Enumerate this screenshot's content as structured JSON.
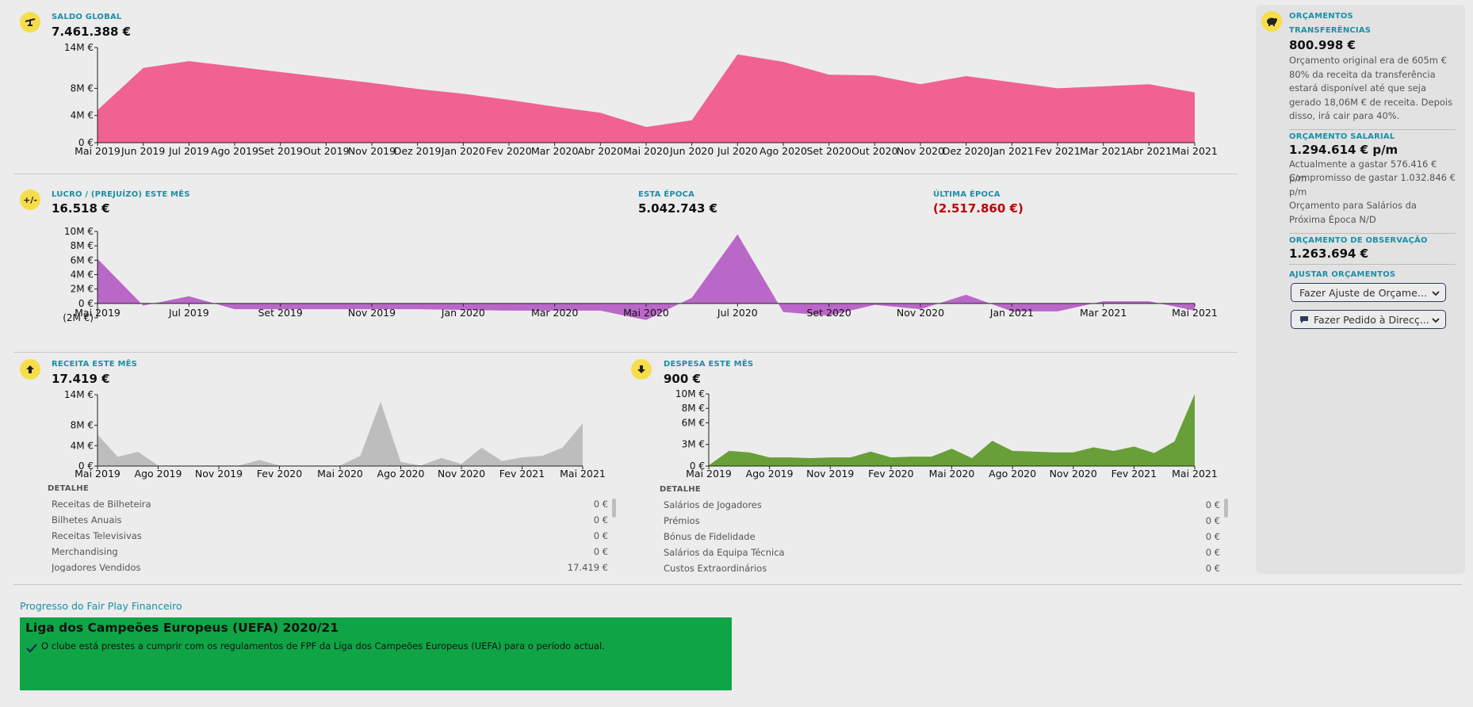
{
  "colors": {
    "accent": "#1c8fa5",
    "balance": "#f06292",
    "profit": "#ba68c8",
    "income": "#bdbdbd",
    "expense": "#689f38",
    "negative": "#c00000",
    "ffp": "#0fa546"
  },
  "balance": {
    "label": "SALDO GLOBAL",
    "value": "7.461.388 €",
    "icon": "scale-icon",
    "chart_data": {
      "type": "area",
      "categories": [
        "Mai 2019",
        "Jun 2019",
        "Jul 2019",
        "Ago 2019",
        "Set 2019",
        "Out 2019",
        "Nov 2019",
        "Dez 2019",
        "Jan 2020",
        "Fev 2020",
        "Mar 2020",
        "Abr 2020",
        "Mai 2020",
        "Jun 2020",
        "Jul 2020",
        "Ago 2020",
        "Set 2020",
        "Out 2020",
        "Nov 2020",
        "Dez 2020",
        "Jan 2021",
        "Fev 2021",
        "Mar 2021",
        "Abr 2021",
        "Mai 2021"
      ],
      "values": [
        4.8,
        11.0,
        12.0,
        11.2,
        10.4,
        9.6,
        8.8,
        7.9,
        7.2,
        6.3,
        5.3,
        4.4,
        2.3,
        3.3,
        13.0,
        11.9,
        10.0,
        9.9,
        8.6,
        9.8,
        8.9,
        8.0,
        8.3,
        8.6,
        7.4
      ],
      "yticks": [
        "0 €",
        "4M €",
        "8M €",
        "14M €"
      ],
      "ytick_values": [
        0,
        4,
        8,
        14
      ],
      "ylim": [
        0,
        14
      ]
    }
  },
  "profit": {
    "label": "LUCRO / (PREJUÍZO) ESTE MÊS",
    "value": "16.518 €",
    "icon": "plus-minus-icon",
    "season_label": "ESTA ÉPOCA",
    "season_value": "5.042.743 €",
    "last_label": "ÚLTIMA ÉPOCA",
    "last_value": "(2.517.860 €)",
    "chart_data": {
      "type": "area",
      "x_labels": [
        "Mai 2019",
        "Jul 2019",
        "Set 2019",
        "Nov 2019",
        "Jan 2020",
        "Mar 2020",
        "Mai 2020",
        "Jul 2020",
        "Set 2020",
        "Nov 2020",
        "Jan 2021",
        "Mar 2021",
        "Mai 2021"
      ],
      "values": [
        6.2,
        -0.3,
        1.0,
        -0.8,
        -0.8,
        -0.8,
        -0.8,
        -0.8,
        -0.9,
        -1.0,
        -1.0,
        -1.0,
        -2.3,
        0.8,
        9.6,
        -1.2,
        -1.7,
        -0.2,
        -0.8,
        1.2,
        -1.1,
        -1.1,
        0.3,
        0.3,
        -1.0
      ],
      "yticks": [
        "10M €",
        "8M €",
        "6M €",
        "4M €",
        "2M €",
        "0 €",
        "(2M €)"
      ],
      "ytick_values": [
        10,
        8,
        6,
        4,
        2,
        0,
        -2
      ],
      "ylim": [
        -2,
        10
      ]
    }
  },
  "income": {
    "label": "RECEITA ESTE MÊS",
    "value": "17.419 €",
    "icon": "arrow-up-icon",
    "chart_data": {
      "type": "area",
      "x_labels": [
        "Mai 2019",
        "Ago 2019",
        "Nov 2019",
        "Fev 2020",
        "Mai 2020",
        "Ago 2020",
        "Nov 2020",
        "Fev 2021",
        "Mai 2021"
      ],
      "values": [
        6.2,
        1.8,
        2.8,
        0.1,
        0.1,
        0.1,
        0.1,
        0.1,
        1.2,
        0.1,
        0.1,
        0.1,
        0.1,
        2.0,
        12.6,
        0.8,
        0.1,
        1.6,
        0.4,
        3.6,
        1.0,
        1.7,
        2.0,
        3.6,
        8.4
      ],
      "yticks": [
        "0 €",
        "4M €",
        "8M €",
        "14M €"
      ],
      "ytick_values": [
        0,
        4,
        8,
        14
      ],
      "ylim": [
        0,
        14
      ]
    },
    "detail_label": "DETALHE",
    "details": [
      {
        "name": "Receitas de Bilheteira",
        "value": "0 €"
      },
      {
        "name": "Bilhetes Anuais",
        "value": "0 €"
      },
      {
        "name": "Receitas Televisivas",
        "value": "0 €"
      },
      {
        "name": "Merchandising",
        "value": "0 €"
      },
      {
        "name": "Jogadores Vendidos",
        "value": "17.419 €"
      }
    ]
  },
  "expense": {
    "label": "DESPESA ESTE MÊS",
    "value": "900 €",
    "icon": "arrow-down-icon",
    "chart_data": {
      "type": "area",
      "x_labels": [
        "Mai 2019",
        "Ago 2019",
        "Nov 2019",
        "Fev 2020",
        "Mai 2020",
        "Ago 2020",
        "Nov 2020",
        "Fev 2021",
        "Mai 2021"
      ],
      "values": [
        0.1,
        2.1,
        1.9,
        1.2,
        1.2,
        1.1,
        1.2,
        1.2,
        2.0,
        1.2,
        1.3,
        1.3,
        2.4,
        1.1,
        3.5,
        2.1,
        2.0,
        1.9,
        1.9,
        2.6,
        2.1,
        2.7,
        1.8,
        3.4,
        10.0
      ],
      "yticks": [
        "0 €",
        "3M €",
        "6M €",
        "8M €",
        "10M €"
      ],
      "ytick_values": [
        0,
        3,
        6,
        8,
        10
      ],
      "ylim": [
        0,
        10
      ]
    },
    "detail_label": "DETALHE",
    "details": [
      {
        "name": "Salários de Jogadores",
        "value": "0 €"
      },
      {
        "name": "Prémios",
        "value": "0 €"
      },
      {
        "name": "Bónus de Fidelidade",
        "value": "0 €"
      },
      {
        "name": "Salários da Equipa Técnica",
        "value": "0 €"
      },
      {
        "name": "Custos Extraordinários",
        "value": "0 €"
      }
    ]
  },
  "budgets": {
    "label": "ORÇAMENTOS",
    "icon": "piggy-bank-icon",
    "transfers_label": "TRANSFERÊNCIAS",
    "transfers_value": "800.998 €",
    "transfers_text": "Orçamento original era de 605m € 80% da receita da transferência estará disponível até que seja gerado 18,06M € de receita. Depois disso, irá cair para 40%.",
    "wage_label": "ORÇAMENTO SALARIAL",
    "wage_value": "1.294.614 € p/m",
    "wage_current": "Actualmente a gastar 576.416 € p/m",
    "wage_committed": "Compromisso de gastar 1.032.846 € p/m",
    "wage_next": "Orçamento para Salários da Próxima Época N/D",
    "scouting_label": "ORÇAMENTO DE OBSERVAÇÃO",
    "scouting_value": "1.263.694 €",
    "adjust_label": "AJUSTAR ORÇAMENTOS",
    "adjust_button": "Fazer Ajuste de Orçamen...",
    "request_button": "Fazer Pedido à Direcç..."
  },
  "ffp": {
    "title": "Progresso do Fair Play Financeiro",
    "competition": "Liga dos Campeões Europeus (UEFA) 2020/21",
    "status": "O clube está prestes a cumprir com os regulamentos de FPF da Liga dos Campeões Europeus (UEFA) para o período actual."
  }
}
